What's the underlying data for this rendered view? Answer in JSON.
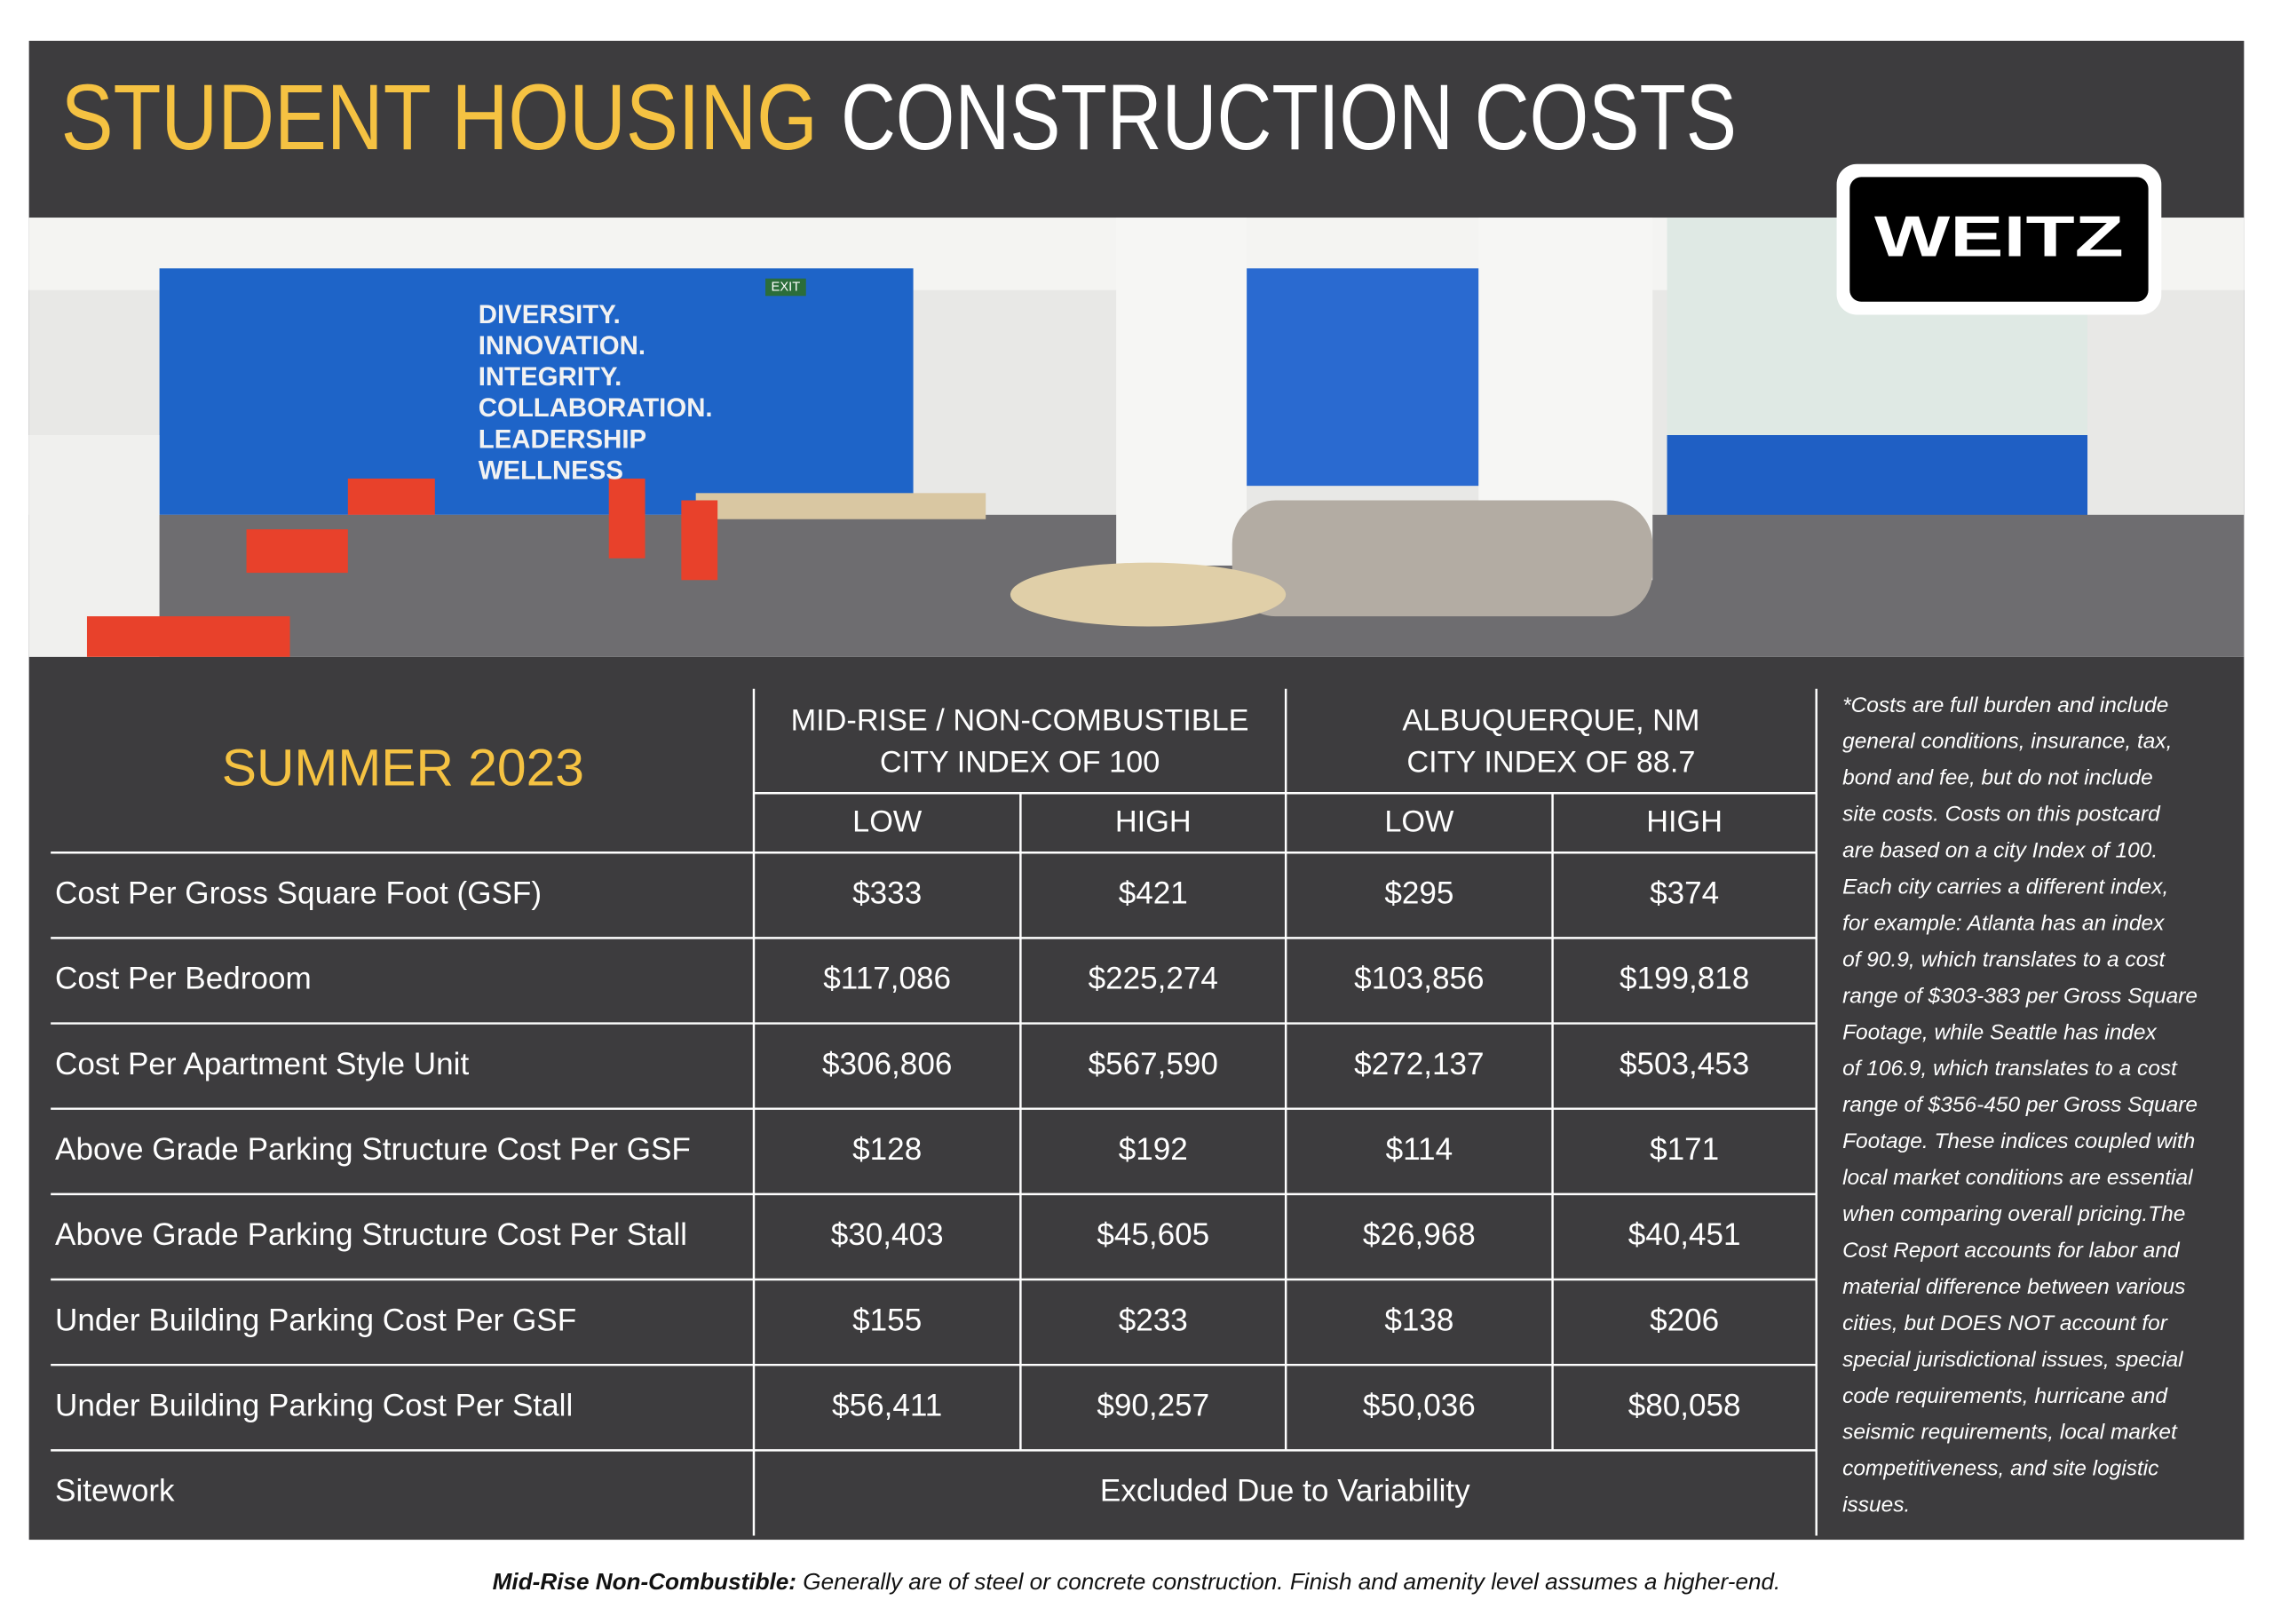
{
  "header": {
    "title_highlight": "STUDENT HOUSING",
    "title_rest": "CONSTRUCTION COSTS"
  },
  "logo": "WEITZ",
  "photo": {
    "wall_text": [
      "DIVERSITY.",
      "INNOVATION.",
      "INTEGRITY.",
      "COLLABORATION.",
      "LEADERSHIP",
      "WELLNESS"
    ],
    "exit": "EXIT"
  },
  "table": {
    "season": "SUMMER 2023",
    "groups": [
      [
        "MID-RISE / NON-COMBUSTIBLE",
        "CITY INDEX OF 100"
      ],
      [
        "ALBUQUERQUE, NM",
        "CITY INDEX OF 88.7"
      ]
    ],
    "subheaders": [
      "LOW",
      "HIGH",
      "LOW",
      "HIGH"
    ],
    "rows": [
      {
        "label": "Cost Per Gross Square Foot (GSF)",
        "values": [
          "$333",
          "$421",
          "$295",
          "$374"
        ]
      },
      {
        "label": "Cost Per Bedroom",
        "values": [
          "$117,086",
          "$225,274",
          "$103,856",
          "$199,818"
        ]
      },
      {
        "label": "Cost Per Apartment Style Unit",
        "values": [
          "$306,806",
          "$567,590",
          "$272,137",
          "$503,453"
        ]
      },
      {
        "label": "Above Grade Parking Structure Cost Per GSF",
        "values": [
          "$128",
          "$192",
          "$114",
          "$171"
        ]
      },
      {
        "label": "Above Grade Parking Structure Cost Per Stall",
        "values": [
          "$30,403",
          "$45,605",
          "$26,968",
          "$40,451"
        ]
      },
      {
        "label": "Under Building Parking Cost Per GSF",
        "values": [
          "$155",
          "$233",
          "$138",
          "$206"
        ]
      },
      {
        "label": "Under Building Parking Cost Per Stall",
        "values": [
          "$56,411",
          "$90,257",
          "$50,036",
          "$80,058"
        ]
      }
    ],
    "sitework": {
      "label": "Sitework",
      "value": "Excluded Due to Variability"
    }
  },
  "note": [
    "*Costs are full burden and include",
    "general conditions, insurance, tax,",
    "bond and fee, but do not include",
    "site costs. Costs on this postcard",
    "are based on a city Index of 100.",
    "Each city carries a different index,",
    "for example: Atlanta has an index",
    "of 90.9, which translates to a cost",
    "range of $303-383 per Gross Square",
    "Footage, while Seattle has index",
    "of 106.9, which translates to a cost",
    "range of $356-450 per Gross Square",
    "Footage. These indices coupled with",
    "local market conditions are essential",
    "when comparing overall pricing.The",
    "Cost Report accounts for labor and",
    "material difference between various",
    "cities, but DOES NOT account for",
    "special jurisdictional issues, special",
    "code requirements, hurricane and",
    "seismic requirements, local market",
    "competitiveness, and site logistic",
    "issues."
  ],
  "footer": {
    "term": "Mid-Rise Non-Combustible:",
    "text": " Generally are of steel or concrete construction. Finish and amenity level assumes a higher-end."
  }
}
